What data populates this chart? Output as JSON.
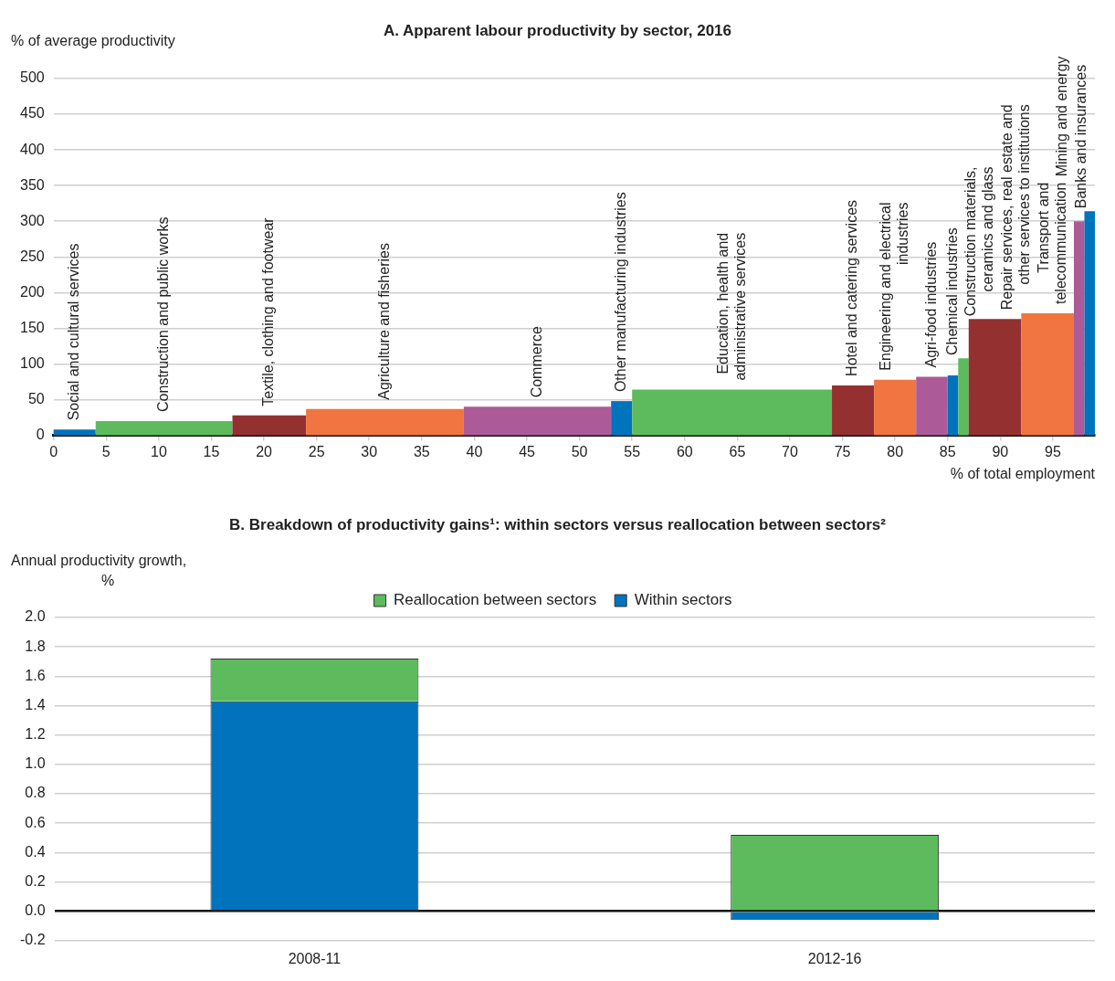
{
  "chart_data": [
    {
      "type": "histogram",
      "title": "A. Apparent labour productivity by sector, 2016",
      "xlabel": "% of total employment",
      "ylabel": "% of average productivity",
      "bins": [
        0,
        4,
        17,
        24,
        39,
        53,
        55,
        74,
        78,
        82,
        85,
        86,
        87,
        92,
        97,
        98,
        99
      ],
      "values": [
        8,
        20,
        28,
        37,
        40,
        48,
        64,
        70,
        78,
        82,
        84,
        108,
        163,
        171,
        300,
        314
      ],
      "colors": [
        "#0073bd",
        "#5dbb5d",
        "#943030",
        "#f07540",
        "#ad5a98",
        "#0073bd",
        "#5dbb5d",
        "#943030",
        "#f07540",
        "#ad5a98",
        "#0073bd",
        "#5dbb5d",
        "#943030",
        "#f07540",
        "#ad5a98",
        "#0073bd"
      ],
      "xlim": [
        0,
        99
      ],
      "xticks": [
        0,
        5,
        10,
        15,
        20,
        25,
        30,
        35,
        40,
        45,
        50,
        55,
        60,
        65,
        70,
        75,
        80,
        85,
        90,
        95
      ],
      "ylim": [
        0,
        500
      ],
      "yticks": [
        0,
        50,
        100,
        150,
        200,
        250,
        300,
        350,
        400,
        450,
        500
      ],
      "grid": "y",
      "annotations": [
        "Social and cultural services",
        "Construction and public works",
        "Textile, clothing and footwear",
        "Agriculture and fisheries",
        "Commerce",
        "Other manufacturing industries",
        "Education, health and\nadministrative services",
        "Hotel and catering services",
        "Engineering and electrical\nindustries",
        "Agri-food industries",
        "Chemical industries",
        "Construction materials,\nceramics and glass",
        "Repair services, real estate and\nother services to institutions",
        "Transport and\ntelecommunication",
        "Banks and insurances",
        "Mining and energy"
      ]
    },
    {
      "type": "bar",
      "title": "B. Breakdown of productivity gains¹: within sectors versus reallocation between sectors²",
      "ylabel": "Annual productivity growth,\n%",
      "categories": [
        "2008-11",
        "2012-16"
      ],
      "stacked": true,
      "legend": "top",
      "grid": "y",
      "ylim": [
        -0.2,
        2.0
      ],
      "yticks": [
        -0.2,
        {
          "value": 0,
          "label": "0.0"
        },
        0.2,
        0.4,
        0.6,
        0.8,
        {
          "value": 1,
          "label": "1.0"
        },
        1.2,
        1.4,
        1.6,
        1.8,
        {
          "value": 2,
          "label": "2.0"
        }
      ],
      "series": [
        {
          "name": "Within sectors",
          "color": "#0073bd",
          "values": [
            1.43,
            -0.06
          ]
        },
        {
          "name": "Reallocation between sectors",
          "color": "#5dbb5d",
          "values": [
            0.29,
            0.52
          ]
        }
      ]
    }
  ]
}
